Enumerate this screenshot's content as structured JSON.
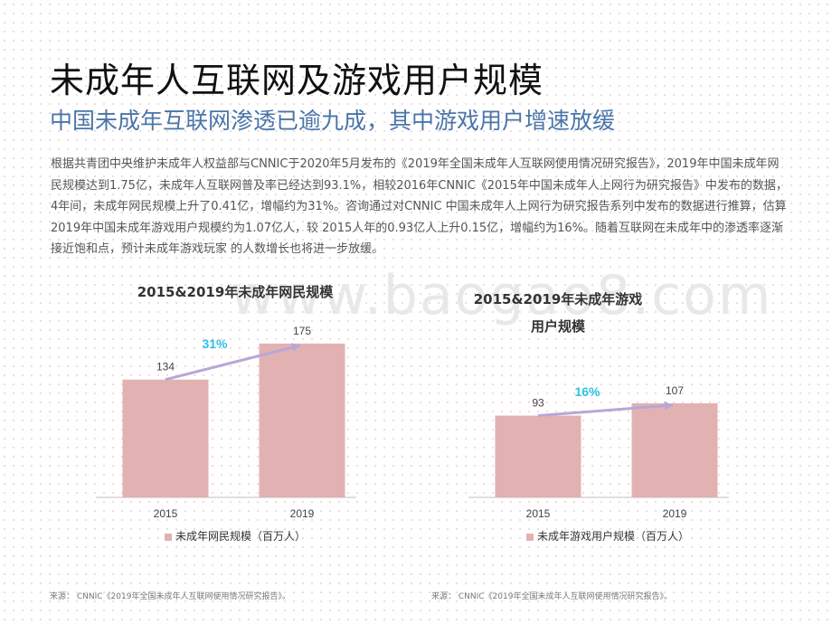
{
  "header": {
    "title": "未成年人互联网及游戏用户规模",
    "subtitle": "中国未成年互联网渗透已逾九成，其中游戏用户增速放缓"
  },
  "body_text": "根据共青团中央维护未成年人权益部与CNNIC于2020年5月发布的《2019年全国未成年人互联网使用情况研究报告》，2019年中国未成年网民规模达到1.75亿，未成年人互联网普及率已经达到93.1%，相较2016年CNNIC《2015年中国未成年人上网行为研究报告》中发布的数据，4年间，未成年网民规模上升了0.41亿，增幅约为31%。咨询通过对CNNIC 中国未成年人上网行为研究报告系列中发布的数据进行推算，估算2019年中国未成年游戏用户规模约为1.07亿人，较 2015人年的0.93亿人上升0.15亿，增幅约为16%。随着互联网在未成年中的渗透率逐渐接近饱和点，预计未成年游戏玩家 的人数增长也将进一步放缓。",
  "watermark": "www.baogao8.com",
  "colors": {
    "bar": "#e2b2b2",
    "growth_arrow": "#b7a7d6",
    "growth_label": "#2ec0e6",
    "subtitle": "#4a76a8"
  },
  "chart_data": [
    {
      "type": "bar",
      "title": "2015&2019年未成年网民规模",
      "categories": [
        "2015",
        "2019"
      ],
      "values": [
        134,
        175
      ],
      "series": [
        {
          "name": "未成年网民规模（百万人）",
          "values": [
            134,
            175
          ]
        }
      ],
      "growth_label": "31%",
      "ylim": [
        0,
        180
      ],
      "legend": "bottom",
      "grid": false
    },
    {
      "type": "bar",
      "title": "2015&2019年未成年游戏用户规模",
      "categories": [
        "2015",
        "2019"
      ],
      "values": [
        93,
        107
      ],
      "series": [
        {
          "name": "未成年游戏用户规模（百万人）",
          "values": [
            93,
            107
          ]
        }
      ],
      "growth_label": "16%",
      "ylim": [
        0,
        180
      ],
      "legend": "bottom",
      "grid": false
    }
  ],
  "sources": [
    "来源：  CNNIC《2019年全国未成年人互联网使用情况研究报告》。",
    "来源：  CNNIC《2019年全国未成年人互联网使用情况研究报告》。"
  ]
}
